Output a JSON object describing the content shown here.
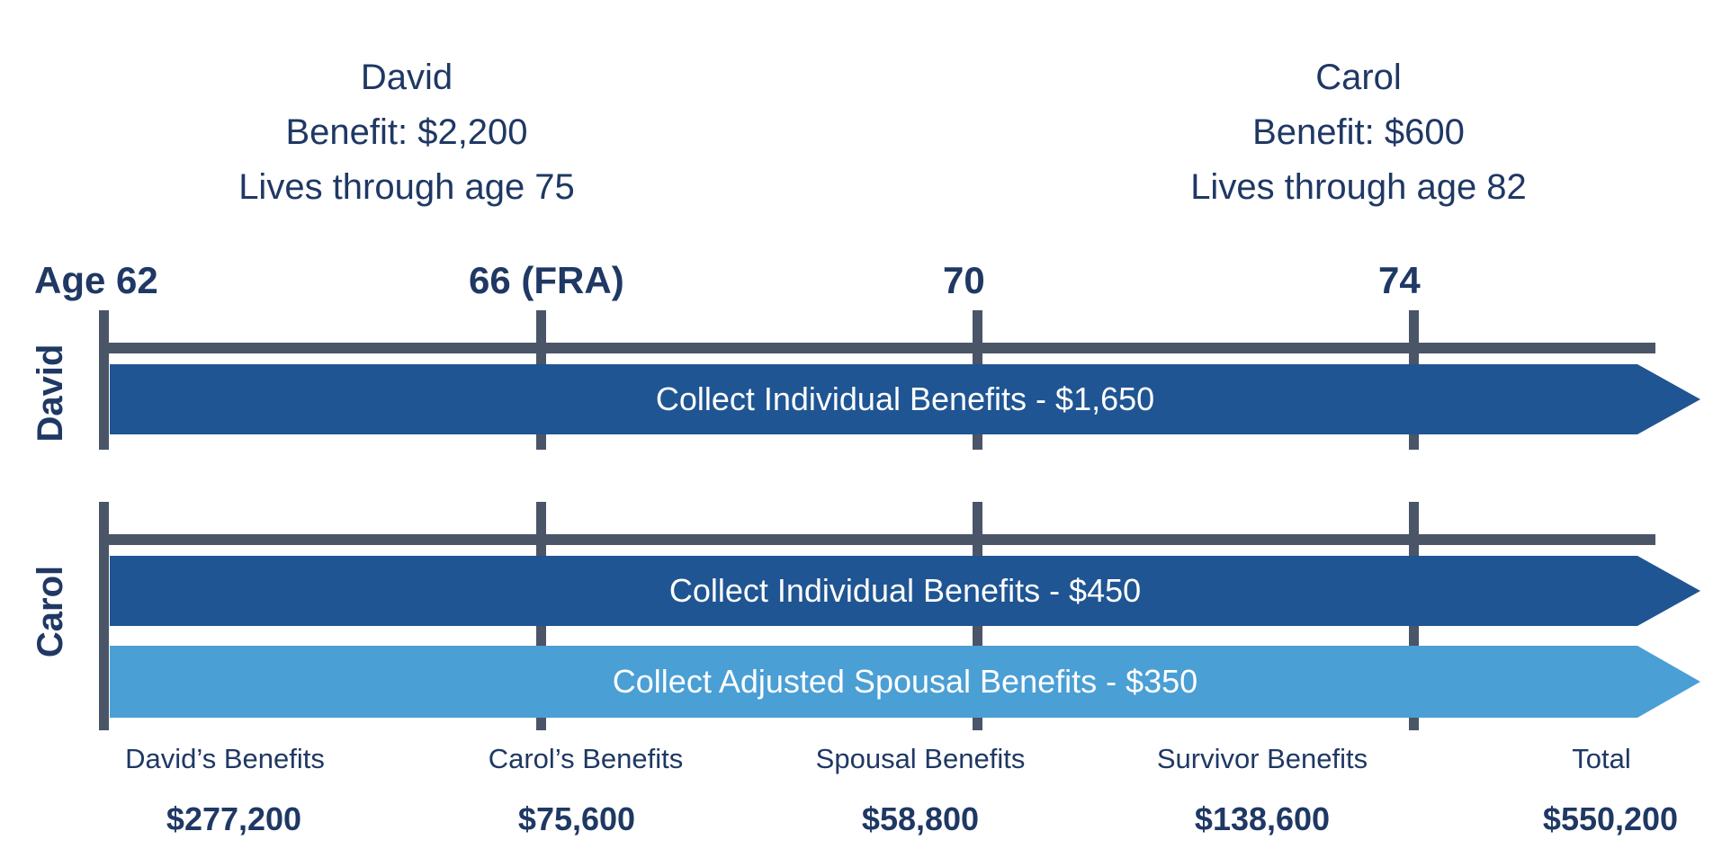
{
  "people": {
    "david": {
      "name": "David",
      "benefit": "Benefit: $2,200",
      "lifespan": "Lives through age 75"
    },
    "carol": {
      "name": "Carol",
      "benefit": "Benefit: $600",
      "lifespan": "Lives through age 82"
    }
  },
  "ages": [
    "Age 62",
    "66 (FRA)",
    "70",
    "74"
  ],
  "rows": {
    "david": {
      "label": "David",
      "bars": [
        {
          "text": "Collect Individual Benefits - $1,650",
          "color": "#1f5592"
        }
      ]
    },
    "carol": {
      "label": "Carol",
      "bars": [
        {
          "text": "Collect Individual Benefits - $450",
          "color": "#1f5592"
        },
        {
          "text": "Collect Adjusted Spousal Benefits - $350",
          "color": "#4a9fd5"
        }
      ]
    }
  },
  "summary": [
    {
      "label": "David’s Benefits",
      "value": "$277,200"
    },
    {
      "label": "Carol’s Benefits",
      "value": "$75,600"
    },
    {
      "label": "Spousal Benefits",
      "value": "$58,800"
    },
    {
      "label": "Survivor Benefits",
      "value": "$138,600"
    },
    {
      "label": "Total",
      "value": "$550,200"
    }
  ],
  "colors": {
    "text": "#1f3864",
    "track": "#4a5568",
    "dark_bar": "#1f5592",
    "light_bar": "#4a9fd5"
  }
}
